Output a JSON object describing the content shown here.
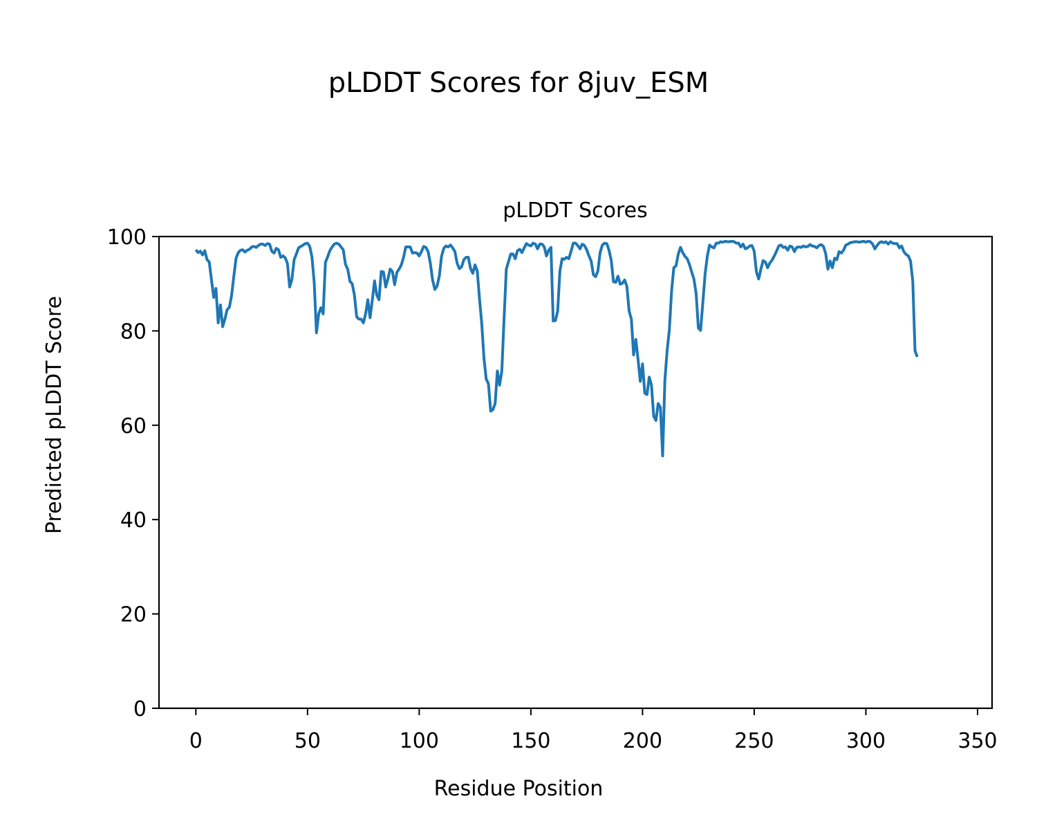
{
  "figure": {
    "suptitle": "pLDDT Scores for 8juv_ESM"
  },
  "colors": {
    "line": "#1f77b4",
    "axes": "#000000",
    "background": "#ffffff"
  },
  "chart_data": {
    "type": "line",
    "title": "pLDDT Scores",
    "xlabel": "Residue Position",
    "ylabel": "Predicted pLDDT Score",
    "xlim": [
      -16.5,
      356.5
    ],
    "ylim": [
      0,
      100
    ],
    "grid": false,
    "xticks": [
      0,
      50,
      100,
      150,
      200,
      250,
      300,
      350
    ],
    "yticks": [
      0,
      20,
      40,
      60,
      80,
      100
    ],
    "series": [
      {
        "points": [
          [
            0,
            97.2
          ],
          [
            1,
            96.6
          ],
          [
            2,
            96.9
          ],
          [
            3,
            96.1
          ],
          [
            4,
            97.0
          ],
          [
            5,
            95.1
          ],
          [
            6,
            94.6
          ],
          [
            7,
            90.8
          ],
          [
            8,
            87.1
          ],
          [
            9,
            89.0
          ],
          [
            10,
            81.7
          ],
          [
            11,
            85.5
          ],
          [
            12,
            80.9
          ],
          [
            13,
            82.5
          ],
          [
            14,
            84.5
          ],
          [
            15,
            85.0
          ],
          [
            16,
            87.5
          ],
          [
            17,
            91.6
          ],
          [
            18,
            95.4
          ],
          [
            19,
            96.6
          ],
          [
            20,
            97.1
          ],
          [
            21,
            97.2
          ],
          [
            22,
            96.7
          ],
          [
            23,
            97.1
          ],
          [
            24,
            97.3
          ],
          [
            25,
            97.8
          ],
          [
            26,
            97.9
          ],
          [
            27,
            97.7
          ],
          [
            28,
            98.1
          ],
          [
            29,
            98.4
          ],
          [
            30,
            98.4
          ],
          [
            31,
            98.1
          ],
          [
            32,
            98.5
          ],
          [
            33,
            98.4
          ],
          [
            34,
            96.9
          ],
          [
            35,
            96.5
          ],
          [
            36,
            97.5
          ],
          [
            37,
            97.2
          ],
          [
            38,
            95.6
          ],
          [
            39,
            95.9
          ],
          [
            40,
            95.5
          ],
          [
            41,
            94.3
          ],
          [
            42,
            89.3
          ],
          [
            43,
            90.9
          ],
          [
            44,
            95.1
          ],
          [
            45,
            96.3
          ],
          [
            46,
            97.6
          ],
          [
            47,
            97.9
          ],
          [
            48,
            98.2
          ],
          [
            49,
            98.5
          ],
          [
            50,
            98.6
          ],
          [
            51,
            97.9
          ],
          [
            52,
            95.6
          ],
          [
            53,
            90.2
          ],
          [
            54,
            79.6
          ],
          [
            55,
            83.6
          ],
          [
            56,
            84.9
          ],
          [
            57,
            83.6
          ],
          [
            58,
            94.5
          ],
          [
            59,
            95.7
          ],
          [
            60,
            97.0
          ],
          [
            61,
            97.8
          ],
          [
            62,
            98.4
          ],
          [
            63,
            98.6
          ],
          [
            64,
            98.4
          ],
          [
            65,
            97.8
          ],
          [
            66,
            97.2
          ],
          [
            67,
            94.1
          ],
          [
            68,
            93.1
          ],
          [
            69,
            90.5
          ],
          [
            70,
            90.0
          ],
          [
            71,
            87.6
          ],
          [
            72,
            83.0
          ],
          [
            73,
            82.5
          ],
          [
            74,
            82.5
          ],
          [
            75,
            81.7
          ],
          [
            76,
            83.6
          ],
          [
            77,
            86.6
          ],
          [
            78,
            82.8
          ],
          [
            79,
            86.5
          ],
          [
            80,
            90.6
          ],
          [
            81,
            87.6
          ],
          [
            82,
            86.6
          ],
          [
            83,
            92.6
          ],
          [
            84,
            92.5
          ],
          [
            85,
            89.3
          ],
          [
            86,
            91.0
          ],
          [
            87,
            93.1
          ],
          [
            88,
            92.6
          ],
          [
            89,
            89.8
          ],
          [
            90,
            92.4
          ],
          [
            91,
            93.1
          ],
          [
            92,
            94.0
          ],
          [
            93,
            95.6
          ],
          [
            94,
            97.8
          ],
          [
            95,
            97.8
          ],
          [
            96,
            97.8
          ],
          [
            97,
            96.5
          ],
          [
            98,
            96.6
          ],
          [
            99,
            96.5
          ],
          [
            100,
            95.9
          ],
          [
            101,
            96.8
          ],
          [
            102,
            97.9
          ],
          [
            103,
            97.7
          ],
          [
            104,
            96.8
          ],
          [
            105,
            94.3
          ],
          [
            106,
            90.8
          ],
          [
            107,
            88.8
          ],
          [
            108,
            89.5
          ],
          [
            109,
            91.6
          ],
          [
            110,
            95.8
          ],
          [
            111,
            97.5
          ],
          [
            112,
            98.0
          ],
          [
            113,
            97.8
          ],
          [
            114,
            98.2
          ],
          [
            115,
            97.6
          ],
          [
            116,
            96.8
          ],
          [
            117,
            94.3
          ],
          [
            118,
            93.2
          ],
          [
            119,
            93.6
          ],
          [
            120,
            95.1
          ],
          [
            121,
            95.6
          ],
          [
            122,
            95.6
          ],
          [
            123,
            93.2
          ],
          [
            124,
            92.2
          ],
          [
            125,
            94.0
          ],
          [
            126,
            92.7
          ],
          [
            127,
            86.8
          ],
          [
            128,
            81.6
          ],
          [
            129,
            74.2
          ],
          [
            130,
            69.8
          ],
          [
            131,
            68.8
          ],
          [
            132,
            63.0
          ],
          [
            133,
            63.3
          ],
          [
            134,
            64.6
          ],
          [
            135,
            71.5
          ],
          [
            136,
            68.5
          ],
          [
            137,
            71.5
          ],
          [
            138,
            82.6
          ],
          [
            139,
            93.1
          ],
          [
            140,
            94.7
          ],
          [
            141,
            96.3
          ],
          [
            142,
            96.3
          ],
          [
            143,
            95.3
          ],
          [
            144,
            97.0
          ],
          [
            145,
            97.3
          ],
          [
            146,
            96.6
          ],
          [
            147,
            97.6
          ],
          [
            148,
            98.5
          ],
          [
            149,
            98.2
          ],
          [
            150,
            98.0
          ],
          [
            151,
            98.6
          ],
          [
            152,
            98.4
          ],
          [
            153,
            97.4
          ],
          [
            154,
            98.4
          ],
          [
            155,
            98.4
          ],
          [
            156,
            97.8
          ],
          [
            157,
            95.9
          ],
          [
            158,
            97.1
          ],
          [
            159,
            97.7
          ],
          [
            160,
            82.1
          ],
          [
            161,
            82.2
          ],
          [
            162,
            84.2
          ],
          [
            163,
            92.7
          ],
          [
            164,
            95.3
          ],
          [
            165,
            95.2
          ],
          [
            166,
            95.6
          ],
          [
            167,
            95.3
          ],
          [
            168,
            96.9
          ],
          [
            169,
            98.6
          ],
          [
            170,
            98.6
          ],
          [
            171,
            98.1
          ],
          [
            172,
            97.4
          ],
          [
            173,
            98.4
          ],
          [
            174,
            98.1
          ],
          [
            175,
            97.2
          ],
          [
            176,
            95.9
          ],
          [
            177,
            94.8
          ],
          [
            178,
            91.9
          ],
          [
            179,
            91.5
          ],
          [
            180,
            92.7
          ],
          [
            181,
            96.6
          ],
          [
            182,
            98.2
          ],
          [
            183,
            98.6
          ],
          [
            184,
            98.5
          ],
          [
            185,
            97.1
          ],
          [
            186,
            94.9
          ],
          [
            187,
            90.4
          ],
          [
            188,
            90.3
          ],
          [
            189,
            91.6
          ],
          [
            190,
            89.9
          ],
          [
            191,
            90.1
          ],
          [
            192,
            90.8
          ],
          [
            193,
            89.4
          ],
          [
            194,
            84.2
          ],
          [
            195,
            82.5
          ],
          [
            196,
            74.9
          ],
          [
            197,
            78.2
          ],
          [
            198,
            73.9
          ],
          [
            199,
            69.3
          ],
          [
            200,
            73.0
          ],
          [
            201,
            66.8
          ],
          [
            202,
            66.5
          ],
          [
            203,
            70.2
          ],
          [
            204,
            68.5
          ],
          [
            205,
            61.9
          ],
          [
            206,
            61.0
          ],
          [
            207,
            64.6
          ],
          [
            208,
            63.8
          ],
          [
            209,
            53.5
          ],
          [
            210,
            69.5
          ],
          [
            211,
            75.8
          ],
          [
            212,
            80.2
          ],
          [
            213,
            88.4
          ],
          [
            214,
            93.4
          ],
          [
            215,
            93.8
          ],
          [
            216,
            96.3
          ],
          [
            217,
            97.7
          ],
          [
            218,
            96.6
          ],
          [
            219,
            95.8
          ],
          [
            220,
            95.3
          ],
          [
            221,
            94.1
          ],
          [
            222,
            92.5
          ],
          [
            223,
            91.0
          ],
          [
            224,
            87.9
          ],
          [
            225,
            80.6
          ],
          [
            226,
            80.1
          ],
          [
            227,
            86.0
          ],
          [
            228,
            92.0
          ],
          [
            229,
            95.8
          ],
          [
            230,
            98.2
          ],
          [
            231,
            97.8
          ],
          [
            232,
            97.6
          ],
          [
            233,
            98.6
          ],
          [
            234,
            98.6
          ],
          [
            235,
            98.9
          ],
          [
            236,
            98.8
          ],
          [
            237,
            99.0
          ],
          [
            238,
            98.9
          ],
          [
            239,
            98.9
          ],
          [
            240,
            99.0
          ],
          [
            241,
            98.9
          ],
          [
            242,
            98.6
          ],
          [
            243,
            98.6
          ],
          [
            244,
            97.8
          ],
          [
            245,
            98.4
          ],
          [
            246,
            97.4
          ],
          [
            247,
            97.6
          ],
          [
            248,
            98.0
          ],
          [
            249,
            98.1
          ],
          [
            250,
            96.9
          ],
          [
            251,
            92.5
          ],
          [
            252,
            91.0
          ],
          [
            253,
            93.1
          ],
          [
            254,
            94.9
          ],
          [
            255,
            94.6
          ],
          [
            256,
            93.4
          ],
          [
            257,
            94.4
          ],
          [
            258,
            95.0
          ],
          [
            259,
            95.9
          ],
          [
            260,
            96.9
          ],
          [
            261,
            98.0
          ],
          [
            262,
            98.2
          ],
          [
            263,
            97.7
          ],
          [
            264,
            97.8
          ],
          [
            265,
            97.1
          ],
          [
            266,
            98.0
          ],
          [
            267,
            97.8
          ],
          [
            268,
            96.8
          ],
          [
            269,
            97.7
          ],
          [
            270,
            97.8
          ],
          [
            271,
            97.7
          ],
          [
            272,
            98.0
          ],
          [
            273,
            97.8
          ],
          [
            274,
            97.9
          ],
          [
            275,
            98.3
          ],
          [
            276,
            98.0
          ],
          [
            277,
            97.9
          ],
          [
            278,
            97.6
          ],
          [
            279,
            98.1
          ],
          [
            280,
            98.3
          ],
          [
            281,
            97.9
          ],
          [
            282,
            96.4
          ],
          [
            283,
            93.1
          ],
          [
            284,
            94.8
          ],
          [
            285,
            93.4
          ],
          [
            286,
            95.4
          ],
          [
            287,
            95.1
          ],
          [
            288,
            96.8
          ],
          [
            289,
            96.5
          ],
          [
            290,
            97.1
          ],
          [
            291,
            98.2
          ],
          [
            292,
            98.4
          ],
          [
            293,
            98.7
          ],
          [
            294,
            98.8
          ],
          [
            295,
            98.9
          ],
          [
            296,
            98.9
          ],
          [
            297,
            98.8
          ],
          [
            298,
            98.9
          ],
          [
            299,
            99.0
          ],
          [
            300,
            98.8
          ],
          [
            301,
            99.0
          ],
          [
            302,
            98.9
          ],
          [
            303,
            98.4
          ],
          [
            304,
            97.4
          ],
          [
            305,
            98.1
          ],
          [
            306,
            98.7
          ],
          [
            307,
            98.9
          ],
          [
            308,
            98.7
          ],
          [
            309,
            98.9
          ],
          [
            310,
            98.4
          ],
          [
            311,
            98.9
          ],
          [
            312,
            98.6
          ],
          [
            313,
            98.5
          ],
          [
            314,
            98.5
          ],
          [
            315,
            97.6
          ],
          [
            316,
            98.0
          ],
          [
            317,
            96.8
          ],
          [
            318,
            96.2
          ],
          [
            319,
            95.9
          ],
          [
            320,
            94.8
          ],
          [
            321,
            90.5
          ],
          [
            322,
            75.8
          ],
          [
            323,
            74.5
          ]
        ]
      }
    ]
  }
}
